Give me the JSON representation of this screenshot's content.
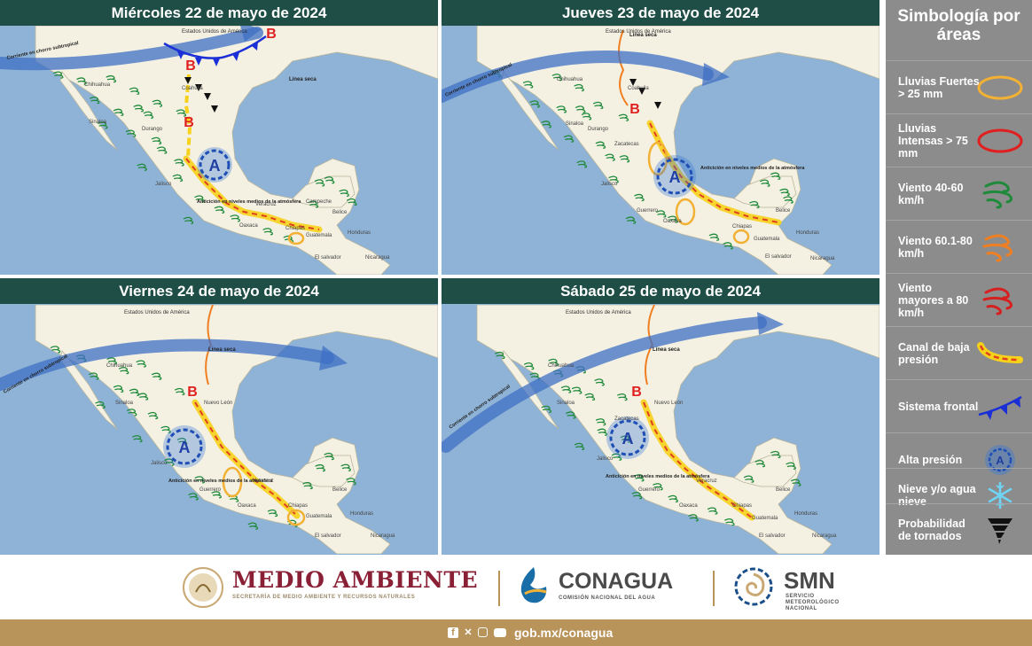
{
  "panels": [
    {
      "title": "Miércoles 22 de mayo de 2024",
      "labels": {
        "us": "Estados Unidos de América",
        "jet": "Corriente en chorro subtropical",
        "dryline": "Línea seca",
        "anticyclone": "Anticición en niveles medios de la atmósfera",
        "chihuahua": "Chihuahua",
        "sinaloa": "Sinaloa",
        "durango": "Durango",
        "coahuila": "Coahuila",
        "jalisco": "Jalisco",
        "oaxaca": "Oaxaca",
        "veracruz": "Veracruz",
        "campeche": "Campeche",
        "chiapas": "Chiapas",
        "guatemala": "Guatemala",
        "belice": "Belice",
        "honduras": "Honduras",
        "nicaragua": "Nicaragua",
        "elsalvador": "El salvador",
        "high": "A",
        "low1": "B",
        "low2": "B",
        "low3": "B"
      }
    },
    {
      "title": "Jueves 23 de mayo de 2024",
      "labels": {
        "us": "Estados Unidos de América",
        "jet": "Corriente en chorro subtropical",
        "dryline": "Línea seca",
        "anticyclone": "Anticición en niveles medios de la atmósfera",
        "chihuahua": "Chihuahua",
        "sinaloa": "Sinaloa",
        "durango": "Durango",
        "coahuila": "Coahuila",
        "zacatecas": "Zacatecas",
        "jalisco": "Jalisco",
        "guerrero": "Guerrero",
        "oaxaca": "Oaxaca",
        "chiapas": "Chiapas",
        "guatemala": "Guatemala",
        "belice": "Belice",
        "honduras": "Honduras",
        "nicaragua": "Nicaragua",
        "elsalvador": "El salvador",
        "high": "A",
        "low1": "B"
      }
    },
    {
      "title": "Viernes 24 de mayo de 2024",
      "labels": {
        "us": "Estados Unidos de América",
        "jet": "Corriente en chorro subtropical",
        "dryline": "Línea seca",
        "anticyclone": "Anticición en niveles medios de la atmósfera",
        "chihuahua": "Chihuahua",
        "sinaloa": "Sinaloa",
        "nuevoleon": "Nuevo León",
        "jalisco": "Jalisco",
        "guerrero": "Guerrero",
        "oaxaca": "Oaxaca",
        "veracruz": "Veracruz",
        "chiapas": "Chiapas",
        "guatemala": "Guatemala",
        "belice": "Belice",
        "honduras": "Honduras",
        "nicaragua": "Nicaragua",
        "elsalvador": "El salvador",
        "high": "A",
        "low1": "B"
      }
    },
    {
      "title": "Sábado 25 de mayo de 2024",
      "labels": {
        "us": "Estados Unidos de América",
        "jet": "Corriente en chorro subtropical",
        "dryline": "Línea seca",
        "anticyclone": "Anticición en niveles medios de la atmósfera",
        "chihuahua": "Chihuahua",
        "sinaloa": "Sinaloa",
        "nuevoleon": "Nuevo León",
        "zacatecas": "Zacatecas",
        "jalisco": "Jalisco",
        "guerrero": "Guerrero",
        "oaxaca": "Oaxaca",
        "veracruz": "Veracruz",
        "chiapas": "Chiapas",
        "guatemala": "Guatemala",
        "belice": "Belice",
        "honduras": "Honduras",
        "nicaragua": "Nicaragua",
        "elsalvador": "El salvador",
        "high": "A",
        "low1": "B"
      }
    }
  ],
  "legend": {
    "title": "Simbología por áreas",
    "items": [
      {
        "label": "Lluvias Fuertes > 25 mm",
        "icon": "yellow-ellipse-icon",
        "color": "#f2b134"
      },
      {
        "label": "Lluvias Intensas > 75 mm",
        "icon": "red-ellipse-icon",
        "color": "#e02020"
      },
      {
        "label": "Viento 40-60 km/h",
        "icon": "green-wind-icon",
        "color": "#1f8a3a"
      },
      {
        "label": "Viento 60.1-80 km/h",
        "icon": "orange-wind-icon",
        "color": "#f07f22"
      },
      {
        "label": "Viento mayores a 80 km/h",
        "icon": "red-wind-icon",
        "color": "#d62020"
      },
      {
        "label": "Canal de baja presión",
        "icon": "trough-icon",
        "color": "#f7d21a"
      },
      {
        "label": "Sistema frontal",
        "icon": "cold-front-icon",
        "color": "#1a2fd6"
      },
      {
        "label": "Alta presión",
        "icon": "high-pressure-icon",
        "color": "#2a66c8"
      },
      {
        "label": "Nieve y/o agua nieve",
        "icon": "snowflake-icon",
        "color": "#6fd4f5"
      },
      {
        "label": "Probabilidad de tornados",
        "icon": "tornado-icon",
        "color": "#111111"
      }
    ]
  },
  "footer": {
    "medio_ambiente": "MEDIO AMBIENTE",
    "medio_ambiente_sub": "SECRETARÍA DE MEDIO AMBIENTE Y RECURSOS NATURALES",
    "conagua": "CONAGUA",
    "conagua_sub": "COMISIÓN NACIONAL DEL AGUA",
    "smn": "SMN",
    "smn_sub1": "SERVICIO",
    "smn_sub2": "METEOROLÓGICO",
    "smn_sub3": "NACIONAL",
    "link": "gob.mx/conagua"
  },
  "colors": {
    "header": "#1f4e47",
    "ocean": "#8fb3d6",
    "land": "#f4f1e3",
    "jet": "#3d6fc4",
    "brand_red": "#8a2035",
    "footer_gold": "#b8935a"
  }
}
